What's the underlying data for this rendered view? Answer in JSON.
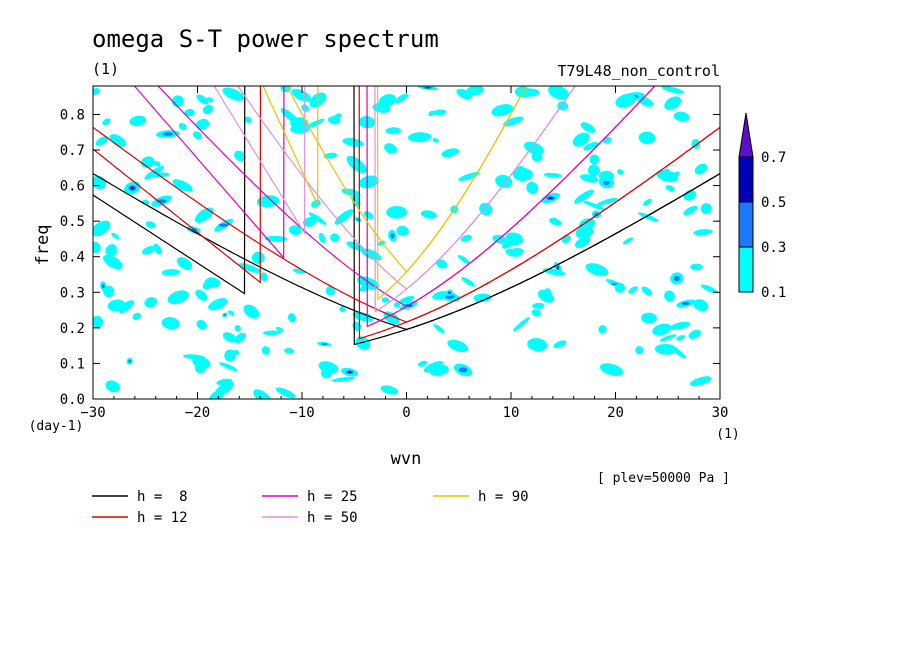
{
  "chart_data": {
    "type": "heatmap",
    "title": "omega S-T power spectrum",
    "subtitle_left": "(1)",
    "subtitle_right": "T79L48_non_control",
    "xlabel": "wvn",
    "ylabel": "freq",
    "x_unit": "(1)",
    "y_unit": "(day-1)",
    "xlim": [
      -30,
      30
    ],
    "ylim": [
      0,
      0.88
    ],
    "xticks": [
      -30,
      -20,
      -10,
      0,
      10,
      20,
      30
    ],
    "yticks": [
      0.0,
      0.1,
      0.2,
      0.3,
      0.4,
      0.5,
      0.6,
      0.7,
      0.8
    ],
    "annotation": "[ plev=50000 Pa ]",
    "colorbar": {
      "levels": [
        "0.1",
        "0.3",
        "0.5",
        "0.7"
      ],
      "colors": [
        "#00ffff",
        "#1e78ff",
        "#0000b4",
        "#5a10c8"
      ]
    },
    "curve_legend": [
      {
        "label": "h =  8",
        "color": "#000000"
      },
      {
        "label": "h = 12",
        "color": "#e00000"
      },
      {
        "label": "h = 25",
        "color": "#e000c0"
      },
      {
        "label": "h = 50",
        "color": "#e090e0"
      },
      {
        "label": "h = 90",
        "color": "#f0c000"
      }
    ],
    "series": [
      {
        "name": "h = 8",
        "h": 8,
        "color": "#000000"
      },
      {
        "name": "h = 12",
        "h": 12,
        "color": "#e00000"
      },
      {
        "name": "h = 25",
        "h": 25,
        "color": "#e000c0"
      },
      {
        "name": "h = 50",
        "h": 50,
        "color": "#e090e0"
      },
      {
        "name": "h = 90",
        "h": 90,
        "color": "#f0c000"
      }
    ]
  }
}
